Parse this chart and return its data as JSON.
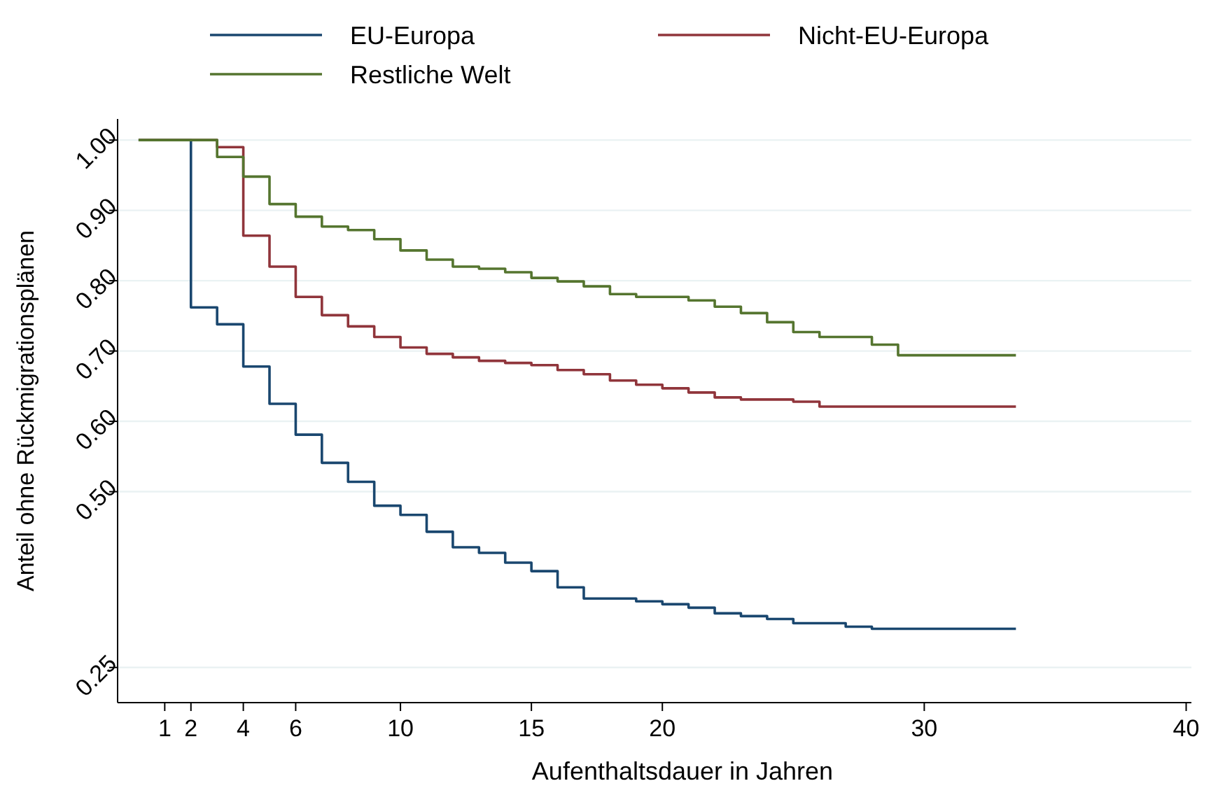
{
  "chart_data": {
    "type": "step",
    "xlabel": "Aufenthaltsdauer in Jahren",
    "ylabel": "Anteil ohne Rückmigrationsplänen",
    "xlim": [
      -0.8,
      40.2
    ],
    "xticks": [
      1,
      2,
      4,
      6,
      10,
      15,
      20,
      30,
      40
    ],
    "ylim": [
      0.2,
      1.03
    ],
    "yticks": [
      {
        "value": 0.25,
        "label": "0.25"
      },
      {
        "value": 0.5,
        "label": "0.50"
      },
      {
        "value": 0.6,
        "label": "0.60"
      },
      {
        "value": 0.7,
        "label": "0.70"
      },
      {
        "value": 0.8,
        "label": "0.80"
      },
      {
        "value": 0.9,
        "label": "0.90"
      },
      {
        "value": 1,
        "label": "1.00"
      }
    ],
    "grid": "y",
    "legend": "top",
    "line_style": "solid",
    "series": [
      {
        "name": "EU-Europa",
        "color": "#1a476f",
        "x": [
          0,
          2,
          3,
          4,
          5,
          6,
          7,
          8,
          9,
          10,
          11,
          12,
          13,
          14,
          15,
          16,
          17,
          19,
          20,
          21,
          22,
          23,
          24,
          25,
          27,
          28,
          33.5
        ],
        "values": [
          1,
          0.762,
          0.738,
          0.678,
          0.625,
          0.581,
          0.541,
          0.514,
          0.48,
          0.467,
          0.443,
          0.421,
          0.413,
          0.399,
          0.387,
          0.364,
          0.348,
          0.344,
          0.34,
          0.335,
          0.327,
          0.323,
          0.319,
          0.313,
          0.308,
          0.305,
          0.305
        ]
      },
      {
        "name": "Nicht-EU-Europa",
        "color": "#90353b",
        "x": [
          0,
          3,
          4,
          5,
          6,
          7,
          8,
          9,
          10,
          11,
          12,
          13,
          14,
          15,
          16,
          17,
          18,
          19,
          20,
          21,
          22,
          23,
          25,
          26,
          33.5
        ],
        "values": [
          1,
          0.99,
          0.864,
          0.82,
          0.777,
          0.751,
          0.735,
          0.72,
          0.705,
          0.696,
          0.691,
          0.686,
          0.683,
          0.68,
          0.673,
          0.667,
          0.658,
          0.652,
          0.647,
          0.641,
          0.634,
          0.631,
          0.628,
          0.621,
          0.621
        ]
      },
      {
        "name": "Restliche Welt",
        "color": "#55752f",
        "x": [
          0,
          3,
          4,
          5,
          6,
          7,
          8,
          9,
          10,
          11,
          12,
          13,
          14,
          15,
          16,
          17,
          18,
          19,
          21,
          22,
          23,
          24,
          25,
          26,
          28,
          29,
          33.5
        ],
        "values": [
          1,
          0.976,
          0.948,
          0.909,
          0.891,
          0.877,
          0.872,
          0.859,
          0.843,
          0.83,
          0.82,
          0.817,
          0.812,
          0.804,
          0.799,
          0.792,
          0.781,
          0.777,
          0.772,
          0.763,
          0.754,
          0.741,
          0.727,
          0.72,
          0.709,
          0.694,
          0.694
        ]
      }
    ]
  }
}
